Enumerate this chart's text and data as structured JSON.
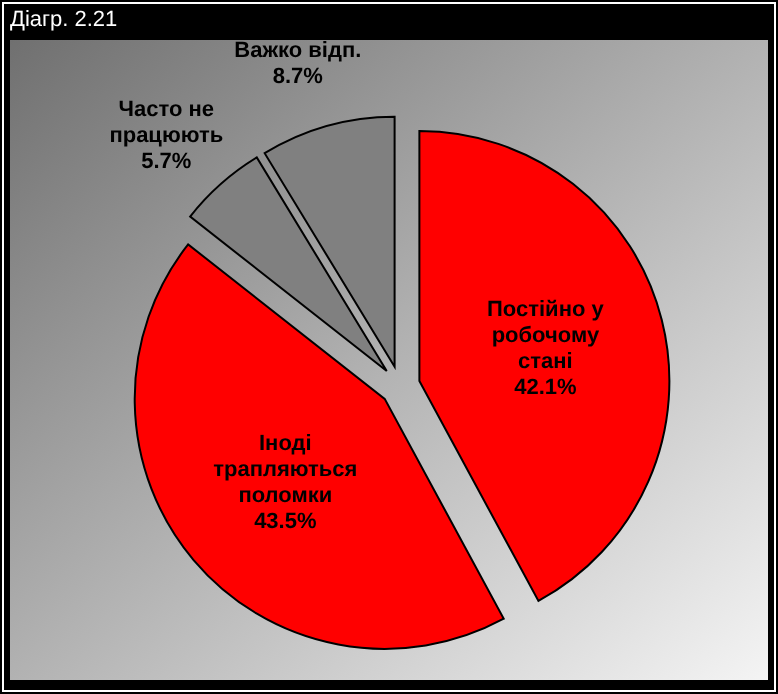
{
  "chart_data": {
    "type": "pie",
    "title": "Діагр. 2.21",
    "categories": [
      "Постійно у робочому стані",
      "Іноді трапляються поломки",
      "Часто не працюють",
      "Важко відп."
    ],
    "values": [
      42.1,
      43.5,
      5.7,
      8.7
    ],
    "colors": [
      "#ff0000",
      "#ff0000",
      "#808080",
      "#808080"
    ],
    "value_labels": [
      "42.1%",
      "43.5%",
      "5.7%",
      "8.7%"
    ]
  }
}
